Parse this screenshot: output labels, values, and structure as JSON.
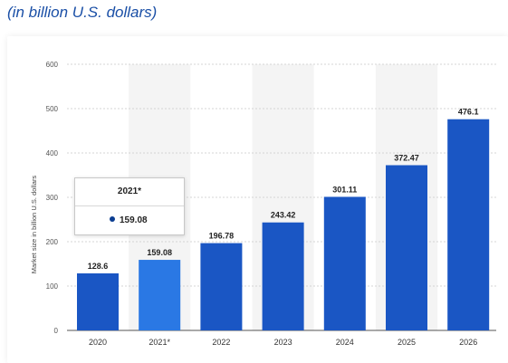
{
  "header": {
    "subtitle": "(in billion U.S. dollars)"
  },
  "colors": {
    "bar": "#1a56c4",
    "bar_highlight": "#2a78e4",
    "band": "#f4f4f4",
    "grid": "#c8c8c8"
  },
  "tooltip": {
    "title": "2021*",
    "value": "159.08",
    "highlight_index": 1
  },
  "chart_data": {
    "type": "bar",
    "title": "",
    "xlabel": "",
    "ylabel": "Market size in billion U.S. dollars",
    "categories": [
      "2020",
      "2021*",
      "2022",
      "2023",
      "2024",
      "2025",
      "2026"
    ],
    "values": [
      128.6,
      159.08,
      196.78,
      243.42,
      301.11,
      372.47,
      476.1
    ],
    "data_labels": [
      "128.6",
      "159.08",
      "196.78",
      "243.42",
      "301.11",
      "372.47",
      "476.1"
    ],
    "ylim": [
      0,
      600
    ],
    "yticks": [
      0,
      100,
      200,
      300,
      400,
      500,
      600
    ],
    "grid": true,
    "highlighted_category": "2021*"
  }
}
